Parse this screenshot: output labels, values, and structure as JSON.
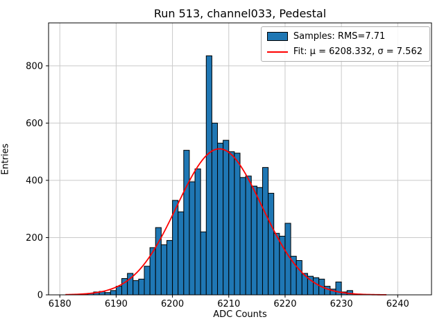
{
  "figure": {
    "title": "Run 513, channel033, Pedestal",
    "xlabel": "ADC Counts",
    "ylabel": "Entries"
  },
  "legend": {
    "samples_label": "Samples: RMS=7.71",
    "fit_label": "Fit: μ = 6208.332, σ = 7.562"
  },
  "chart_data": {
    "type": "bar",
    "subtype": "histogram",
    "title": "Run 513, channel033, Pedestal",
    "xlabel": "ADC Counts",
    "ylabel": "Entries",
    "bins": {
      "start": 6184,
      "width": 1,
      "values": [
        3,
        5,
        10,
        12,
        8,
        15,
        30,
        57,
        75,
        50,
        55,
        100,
        165,
        235,
        175,
        190,
        330,
        290,
        505,
        395,
        440,
        220,
        835,
        600,
        530,
        540,
        500,
        495,
        410,
        415,
        380,
        375,
        445,
        355,
        215,
        205,
        250,
        135,
        120,
        75,
        65,
        60,
        55,
        30,
        20,
        45,
        10,
        15
      ]
    },
    "fit": {
      "type": "gaussian",
      "mu": 6208.332,
      "sigma": 7.562,
      "amplitude": 510,
      "rms": 7.71,
      "x_range": [
        6181,
        6238
      ]
    },
    "axes": {
      "xlim": [
        6178,
        6246
      ],
      "ylim": [
        0,
        950
      ],
      "xticks": [
        6180,
        6190,
        6200,
        6210,
        6220,
        6230,
        6240
      ],
      "yticks": [
        0,
        200,
        400,
        600,
        800
      ],
      "grid": true
    },
    "legend_entries": [
      "Samples: RMS=7.71",
      "Fit: μ = 6208.332, σ = 7.562"
    ],
    "colors": {
      "bar_fill": "#1f77b4",
      "bar_edge": "#000000",
      "fit_line": "#ff0000",
      "grid": "#c9c9c9",
      "axis": "#000000"
    }
  }
}
